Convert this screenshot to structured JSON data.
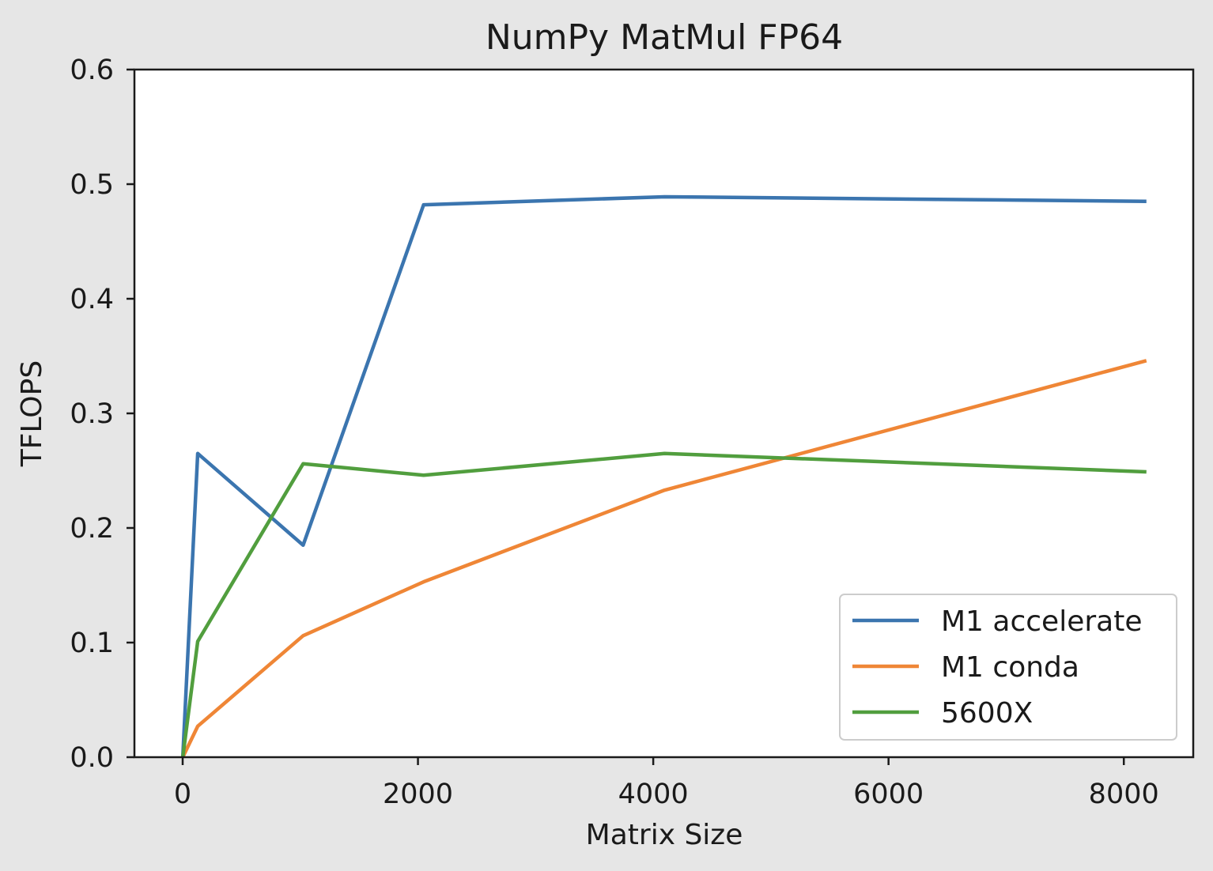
{
  "chart_data": {
    "type": "line",
    "title": "NumPy MatMul FP64",
    "xlabel": "Matrix Size",
    "ylabel": "TFLOPS",
    "xlim": [
      -410,
      8590
    ],
    "ylim": [
      0,
      0.6
    ],
    "xticks": [
      0,
      2000,
      4000,
      6000,
      8000
    ],
    "xtick_labels": [
      "0",
      "2000",
      "4000",
      "6000",
      "8000"
    ],
    "yticks": [
      0.0,
      0.1,
      0.2,
      0.3,
      0.4,
      0.5,
      0.6
    ],
    "ytick_labels": [
      "0.0",
      "0.1",
      "0.2",
      "0.3",
      "0.4",
      "0.5",
      "0.6"
    ],
    "grid": false,
    "legend_position": "lower-right",
    "series": [
      {
        "name": "M1 accelerate",
        "color": "#3b75af",
        "x": [
          1,
          128,
          1024,
          2048,
          4096,
          8192
        ],
        "y": [
          0.0,
          0.265,
          0.185,
          0.482,
          0.489,
          0.485
        ]
      },
      {
        "name": "M1 conda",
        "color": "#ef8636",
        "x": [
          1,
          128,
          1024,
          2048,
          4096,
          8192
        ],
        "y": [
          0.0,
          0.027,
          0.106,
          0.153,
          0.233,
          0.346
        ]
      },
      {
        "name": "5600X",
        "color": "#519e3e",
        "x": [
          1,
          128,
          1024,
          2048,
          4096,
          8192
        ],
        "y": [
          0.0,
          0.101,
          0.256,
          0.246,
          0.265,
          0.249
        ]
      }
    ]
  }
}
